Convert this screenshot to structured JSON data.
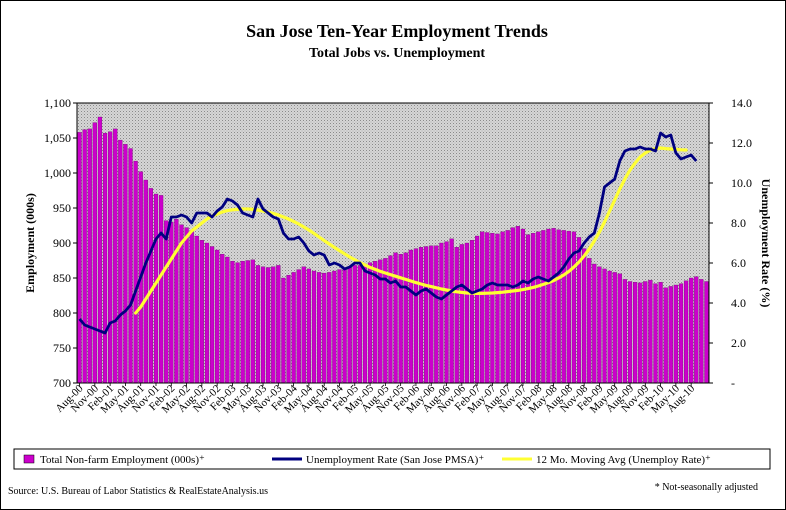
{
  "chart_data": {
    "type": "bar",
    "title": "San Jose Ten-Year Employment Trends",
    "subtitle": "Total Jobs vs. Unemployment",
    "ylabel_left": "Employment (000s)",
    "ylabel_right": "Unemployment Rate (%)",
    "ylim_left": [
      700,
      1100
    ],
    "ylim_right": [
      0,
      14
    ],
    "yticks_left": [
      "700",
      "750",
      "800",
      "850",
      "900",
      "950",
      "1,000",
      "1,050",
      "1,100"
    ],
    "yticks_right": [
      "-",
      "2.0",
      "4.0",
      "6.0",
      "8.0",
      "10.0",
      "12.0",
      "14.0"
    ],
    "xtick_labels": [
      "Aug-00",
      "Nov-00",
      "Feb-01",
      "May-01",
      "Aug-01",
      "Nov-01",
      "Feb-02",
      "May-02",
      "Aug-02",
      "Nov-02",
      "Feb-03",
      "May-03",
      "Aug-03",
      "Nov-03",
      "Feb-04",
      "May-04",
      "Aug-04",
      "Nov-04",
      "Feb-05",
      "May-05",
      "Aug-05",
      "Nov-05",
      "Feb-06",
      "May-06",
      "Aug-06",
      "Nov-06",
      "Feb-07",
      "May-07",
      "Aug-07",
      "Nov-07",
      "Feb-08",
      "May-08",
      "Aug-08",
      "Nov-08",
      "Feb-09",
      "May-09",
      "Aug-09",
      "Nov-09",
      "Feb-10",
      "May-10",
      "Aug-10"
    ],
    "grid": false,
    "plot_background": "gray-dotted",
    "legend_position": "bottom",
    "series": [
      {
        "name": "Total Non-farm Employment (000s)⁺",
        "type": "bar",
        "axis": "left",
        "color": "#cc00cc",
        "values": [
          1058,
          1062,
          1063,
          1072,
          1080,
          1057,
          1059,
          1063,
          1047,
          1041,
          1035,
          1017,
          1002,
          990,
          978,
          970,
          968,
          932,
          930,
          934,
          926,
          922,
          918,
          910,
          904,
          900,
          895,
          890,
          884,
          880,
          874,
          872,
          874,
          875,
          876,
          868,
          866,
          865,
          866,
          868,
          850,
          854,
          858,
          862,
          866,
          863,
          860,
          858,
          857,
          858,
          860,
          862,
          864,
          866,
          868,
          868,
          870,
          872,
          874,
          876,
          878,
          882,
          886,
          884,
          886,
          890,
          892,
          894,
          895,
          896,
          896,
          900,
          902,
          906,
          894,
          898,
          900,
          904,
          910,
          916,
          915,
          914,
          913,
          916,
          918,
          922,
          924,
          920,
          912,
          914,
          916,
          918,
          920,
          921,
          919,
          918,
          917,
          916,
          908,
          892,
          878,
          870,
          866,
          863,
          860,
          858,
          856,
          848,
          845,
          844,
          843,
          845,
          847,
          842,
          844,
          836,
          838,
          840,
          842,
          846,
          850,
          852,
          848,
          845
        ]
      },
      {
        "name": "Unemployment Rate (San Jose PMSA)⁺",
        "type": "line",
        "axis": "right",
        "color": "#000080",
        "values": [
          3.2,
          2.9,
          2.8,
          2.7,
          2.6,
          2.5,
          3.0,
          3.1,
          3.4,
          3.6,
          3.9,
          4.6,
          5.3,
          6.0,
          6.6,
          7.2,
          7.5,
          7.2,
          8.3,
          8.3,
          8.4,
          8.3,
          8.0,
          8.5,
          8.5,
          8.5,
          8.3,
          8.6,
          8.8,
          9.2,
          9.1,
          8.9,
          8.5,
          8.4,
          8.3,
          9.2,
          8.7,
          8.5,
          8.3,
          8.2,
          7.5,
          7.2,
          7.2,
          7.3,
          7.0,
          6.6,
          6.4,
          6.5,
          6.4,
          5.9,
          6.0,
          5.9,
          5.7,
          5.8,
          6.0,
          6.0,
          5.6,
          5.5,
          5.4,
          5.2,
          5.2,
          5.0,
          5.1,
          4.8,
          4.8,
          4.6,
          4.4,
          4.6,
          4.7,
          4.5,
          4.3,
          4.2,
          4.4,
          4.6,
          4.8,
          4.9,
          4.7,
          4.5,
          4.6,
          4.7,
          4.9,
          5.0,
          4.9,
          4.9,
          4.9,
          4.8,
          4.9,
          5.1,
          5.0,
          5.2,
          5.3,
          5.2,
          5.1,
          5.3,
          5.5,
          5.8,
          6.2,
          6.5,
          6.6,
          7.0,
          7.3,
          7.5,
          8.5,
          9.8,
          10.0,
          10.2,
          11.1,
          11.6,
          11.7,
          11.7,
          11.8,
          11.7,
          11.7,
          11.6,
          12.5,
          12.3,
          12.4,
          11.5,
          11.2,
          11.3,
          11.4,
          11.1
        ]
      },
      {
        "name": "12 Mo. Moving Avg (Unemploy Rate)⁺",
        "type": "line",
        "axis": "right",
        "color": "#ffff33",
        "start_index": 11,
        "values": [
          3.5,
          3.8,
          4.2,
          4.6,
          5.0,
          5.4,
          5.8,
          6.2,
          6.6,
          7.0,
          7.3,
          7.6,
          7.8,
          8.0,
          8.2,
          8.35,
          8.45,
          8.55,
          8.62,
          8.66,
          8.68,
          8.7,
          8.7,
          8.68,
          8.65,
          8.6,
          8.55,
          8.48,
          8.4,
          8.3,
          8.2,
          8.08,
          7.95,
          7.8,
          7.65,
          7.48,
          7.3,
          7.12,
          6.95,
          6.78,
          6.62,
          6.46,
          6.3,
          6.16,
          6.02,
          5.9,
          5.78,
          5.68,
          5.58,
          5.5,
          5.42,
          5.34,
          5.26,
          5.18,
          5.1,
          5.02,
          4.95,
          4.88,
          4.82,
          4.76,
          4.7,
          4.65,
          4.6,
          4.56,
          4.53,
          4.5,
          4.49,
          4.48,
          4.48,
          4.49,
          4.5,
          4.52,
          4.54,
          4.57,
          4.6,
          4.63,
          4.67,
          4.72,
          4.78,
          4.85,
          4.93,
          5.02,
          5.12,
          5.25,
          5.4,
          5.58,
          5.8,
          6.05,
          6.35,
          6.7,
          7.1,
          7.55,
          8.05,
          8.6,
          9.15,
          9.7,
          10.2,
          10.65,
          11.0,
          11.3,
          11.5,
          11.65,
          11.72,
          11.75,
          11.72,
          11.7,
          11.68,
          11.66,
          11.65
        ]
      }
    ]
  },
  "source_note": "Source: U.S. Bureau of Labor Statistics & RealEstateAnalysis.us",
  "footnote": "* Not-seasonally adjusted"
}
